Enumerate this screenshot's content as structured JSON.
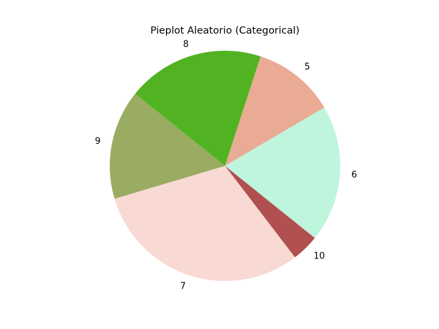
{
  "chart_data": {
    "type": "pie",
    "title": "Pieplot Aleatorio (Categorical)",
    "labels": [
      "5",
      "6",
      "10",
      "7",
      "9",
      "8"
    ],
    "values": [
      12,
      20,
      4,
      32,
      16,
      20
    ],
    "colors": [
      "#e9ab94",
      "#bff4dd",
      "#b05050",
      "#f8d9d3",
      "#9aac62",
      "#52b322"
    ],
    "start_angle": 72,
    "direction": "clockwise",
    "legend": "none"
  }
}
